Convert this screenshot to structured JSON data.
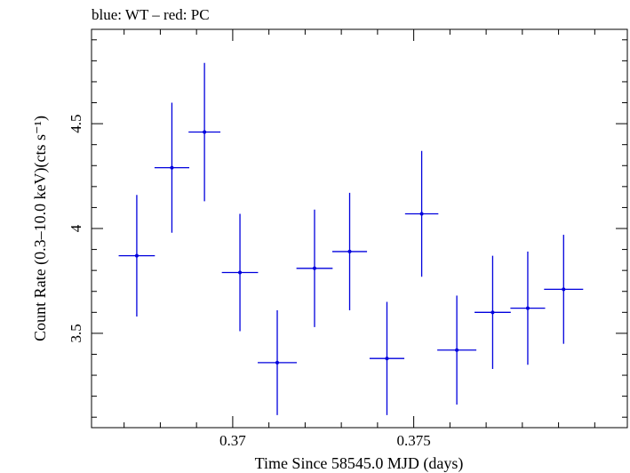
{
  "chart_data": {
    "type": "scatter",
    "title": "blue: WT – red: PC",
    "xlabel": "Time Since 58545.0 MJD (days)",
    "ylabel": "Count Rate (0.3–10.0 keV)(cts s⁻¹)",
    "xlim": [
      0.3661,
      0.3809
    ],
    "ylim": [
      3.05,
      4.95
    ],
    "x_ticks": [
      0.37,
      0.375
    ],
    "x_tick_labels": [
      "0.37",
      "0.375"
    ],
    "y_ticks": [
      3.5,
      4.0,
      4.5
    ],
    "y_tick_labels": [
      "3.5",
      "4",
      "4.5"
    ],
    "x_minor_step": 0.001,
    "y_minor_step": 0.1,
    "grid": false,
    "series": [
      {
        "color": "#0000dd",
        "points": [
          {
            "x": 0.36735,
            "xerr": 0.0005,
            "y": 3.87,
            "yerr": 0.29
          },
          {
            "x": 0.36832,
            "xerr": 0.00048,
            "y": 4.29,
            "yerr": 0.31
          },
          {
            "x": 0.36922,
            "xerr": 0.00044,
            "y": 4.46,
            "yerr": 0.33
          },
          {
            "x": 0.3702,
            "xerr": 0.0005,
            "y": 3.79,
            "yerr": 0.28
          },
          {
            "x": 0.37123,
            "xerr": 0.00054,
            "y": 3.36,
            "yerr": 0.25
          },
          {
            "x": 0.37226,
            "xerr": 0.0005,
            "y": 3.81,
            "yerr": 0.28
          },
          {
            "x": 0.37323,
            "xerr": 0.00048,
            "y": 3.89,
            "yerr": 0.28
          },
          {
            "x": 0.37426,
            "xerr": 0.00048,
            "y": 3.38,
            "yerr": 0.27
          },
          {
            "x": 0.37522,
            "xerr": 0.00046,
            "y": 4.07,
            "yerr": 0.3
          },
          {
            "x": 0.37619,
            "xerr": 0.00054,
            "y": 3.42,
            "yerr": 0.26
          },
          {
            "x": 0.37718,
            "xerr": 0.0005,
            "y": 3.6,
            "yerr": 0.27
          },
          {
            "x": 0.37815,
            "xerr": 0.00048,
            "y": 3.62,
            "yerr": 0.27
          },
          {
            "x": 0.37914,
            "xerr": 0.00054,
            "y": 3.71,
            "yerr": 0.26
          }
        ]
      }
    ]
  }
}
